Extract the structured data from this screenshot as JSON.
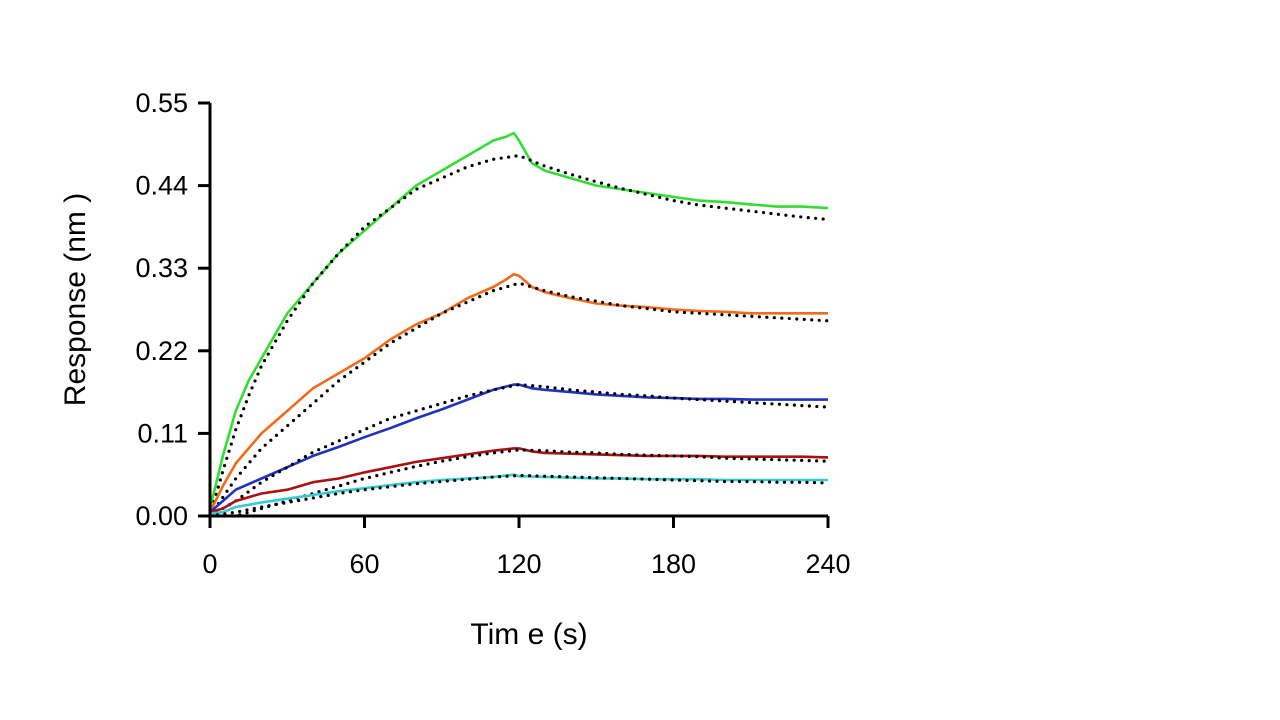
{
  "chart_data": {
    "type": "line",
    "title": "",
    "xlabel": "Tim e (s)",
    "ylabel": "Response (nm )",
    "xlim": [
      0,
      240
    ],
    "ylim": [
      0,
      0.55
    ],
    "xticks": [
      0,
      60,
      120,
      180,
      240
    ],
    "xtick_labels": [
      "0",
      "60",
      "120",
      "180",
      "240"
    ],
    "yticks": [
      0,
      0.11,
      0.22,
      0.33,
      0.44,
      0.55
    ],
    "ytick_labels": [
      "0.00",
      "0.11",
      "0.22",
      "0.33",
      "0.44",
      "0.55"
    ],
    "grid": false,
    "legend": "none",
    "series": [
      {
        "color": "#33dd33",
        "x": [
          0,
          5,
          10,
          15,
          20,
          30,
          40,
          50,
          60,
          70,
          80,
          90,
          100,
          105,
          110,
          115,
          118,
          120,
          125,
          130,
          140,
          150,
          160,
          170,
          180,
          190,
          200,
          210,
          220,
          230,
          240
        ],
        "y": [
          0.01,
          0.08,
          0.14,
          0.18,
          0.21,
          0.27,
          0.31,
          0.35,
          0.38,
          0.41,
          0.44,
          0.46,
          0.48,
          0.49,
          0.5,
          0.505,
          0.51,
          0.5,
          0.47,
          0.46,
          0.45,
          0.44,
          0.435,
          0.43,
          0.425,
          0.42,
          0.418,
          0.415,
          0.412,
          0.412,
          0.41
        ]
      },
      {
        "color": "#000000",
        "dotted": true,
        "x": [
          0,
          5,
          10,
          15,
          20,
          30,
          40,
          50,
          60,
          70,
          80,
          90,
          100,
          110,
          120,
          130,
          140,
          150,
          160,
          170,
          180,
          190,
          200,
          210,
          220,
          230,
          240
        ],
        "y": [
          0.0,
          0.06,
          0.115,
          0.16,
          0.2,
          0.26,
          0.31,
          0.35,
          0.385,
          0.41,
          0.435,
          0.45,
          0.465,
          0.475,
          0.48,
          0.466,
          0.455,
          0.445,
          0.436,
          0.428,
          0.42,
          0.414,
          0.41,
          0.406,
          0.402,
          0.398,
          0.395
        ]
      },
      {
        "color": "#f26b1d",
        "x": [
          0,
          5,
          10,
          15,
          20,
          30,
          40,
          50,
          60,
          70,
          80,
          90,
          100,
          110,
          115,
          118,
          120,
          125,
          130,
          140,
          150,
          160,
          170,
          180,
          190,
          200,
          210,
          220,
          230,
          240
        ],
        "y": [
          0.005,
          0.04,
          0.07,
          0.09,
          0.11,
          0.14,
          0.17,
          0.19,
          0.21,
          0.235,
          0.255,
          0.27,
          0.29,
          0.305,
          0.315,
          0.322,
          0.32,
          0.305,
          0.298,
          0.29,
          0.283,
          0.28,
          0.278,
          0.275,
          0.273,
          0.272,
          0.27,
          0.27,
          0.27,
          0.27
        ]
      },
      {
        "color": "#000000",
        "dotted": true,
        "x": [
          0,
          10,
          20,
          30,
          40,
          50,
          60,
          70,
          80,
          90,
          100,
          110,
          120,
          130,
          140,
          150,
          160,
          170,
          180,
          190,
          200,
          210,
          220,
          230,
          240
        ],
        "y": [
          0.0,
          0.05,
          0.09,
          0.12,
          0.15,
          0.18,
          0.205,
          0.23,
          0.25,
          0.27,
          0.285,
          0.3,
          0.31,
          0.3,
          0.292,
          0.286,
          0.28,
          0.276,
          0.272,
          0.27,
          0.268,
          0.266,
          0.264,
          0.262,
          0.26
        ]
      },
      {
        "color": "#2233bb",
        "x": [
          0,
          5,
          10,
          20,
          30,
          40,
          50,
          60,
          70,
          80,
          90,
          100,
          110,
          118,
          120,
          125,
          130,
          140,
          150,
          160,
          170,
          180,
          190,
          200,
          210,
          220,
          230,
          240
        ],
        "y": [
          0.005,
          0.02,
          0.035,
          0.05,
          0.065,
          0.08,
          0.092,
          0.105,
          0.117,
          0.13,
          0.142,
          0.155,
          0.168,
          0.175,
          0.175,
          0.17,
          0.168,
          0.165,
          0.162,
          0.16,
          0.158,
          0.157,
          0.156,
          0.156,
          0.155,
          0.155,
          0.155,
          0.155
        ]
      },
      {
        "color": "#000000",
        "dotted": true,
        "x": [
          0,
          10,
          20,
          30,
          40,
          50,
          60,
          70,
          80,
          90,
          100,
          110,
          120,
          130,
          140,
          150,
          160,
          170,
          180,
          190,
          200,
          210,
          220,
          230,
          240
        ],
        "y": [
          0.0,
          0.02,
          0.045,
          0.065,
          0.085,
          0.1,
          0.115,
          0.13,
          0.14,
          0.15,
          0.16,
          0.168,
          0.175,
          0.172,
          0.168,
          0.165,
          0.162,
          0.16,
          0.157,
          0.155,
          0.153,
          0.151,
          0.149,
          0.147,
          0.145
        ]
      },
      {
        "color": "#aa1111",
        "x": [
          0,
          5,
          10,
          20,
          30,
          40,
          50,
          60,
          70,
          80,
          90,
          100,
          110,
          118,
          120,
          125,
          130,
          140,
          150,
          160,
          170,
          180,
          190,
          200,
          210,
          220,
          230,
          240
        ],
        "y": [
          0.005,
          0.01,
          0.02,
          0.03,
          0.035,
          0.045,
          0.05,
          0.058,
          0.065,
          0.072,
          0.077,
          0.082,
          0.087,
          0.09,
          0.09,
          0.086,
          0.084,
          0.083,
          0.082,
          0.081,
          0.08,
          0.08,
          0.08,
          0.079,
          0.079,
          0.079,
          0.079,
          0.078
        ]
      },
      {
        "color": "#000000",
        "dotted": true,
        "x": [
          0,
          10,
          20,
          30,
          40,
          50,
          60,
          70,
          80,
          90,
          100,
          110,
          120,
          130,
          140,
          150,
          160,
          170,
          180,
          190,
          200,
          210,
          220,
          230,
          240
        ],
        "y": [
          0.0,
          0.0,
          0.01,
          0.02,
          0.03,
          0.04,
          0.05,
          0.058,
          0.066,
          0.073,
          0.079,
          0.084,
          0.088,
          0.087,
          0.085,
          0.084,
          0.082,
          0.081,
          0.08,
          0.079,
          0.077,
          0.076,
          0.075,
          0.074,
          0.073
        ]
      },
      {
        "color": "#33cccc",
        "x": [
          0,
          5,
          10,
          20,
          30,
          40,
          50,
          60,
          70,
          80,
          90,
          100,
          110,
          118,
          120,
          130,
          140,
          150,
          160,
          170,
          180,
          190,
          200,
          210,
          220,
          230,
          240
        ],
        "y": [
          0.003,
          0.005,
          0.012,
          0.018,
          0.023,
          0.028,
          0.033,
          0.037,
          0.041,
          0.045,
          0.048,
          0.05,
          0.052,
          0.055,
          0.053,
          0.052,
          0.051,
          0.05,
          0.05,
          0.049,
          0.049,
          0.049,
          0.048,
          0.048,
          0.048,
          0.048,
          0.048
        ]
      },
      {
        "color": "#000000",
        "dotted": true,
        "x": [
          0,
          10,
          20,
          30,
          40,
          50,
          60,
          70,
          80,
          90,
          100,
          110,
          120,
          130,
          140,
          150,
          160,
          170,
          180,
          190,
          200,
          210,
          220,
          230,
          240
        ],
        "y": [
          0.0,
          0.005,
          0.012,
          0.018,
          0.024,
          0.03,
          0.035,
          0.039,
          0.043,
          0.046,
          0.049,
          0.052,
          0.054,
          0.053,
          0.052,
          0.051,
          0.05,
          0.049,
          0.048,
          0.047,
          0.046,
          0.046,
          0.045,
          0.045,
          0.044
        ]
      }
    ]
  }
}
